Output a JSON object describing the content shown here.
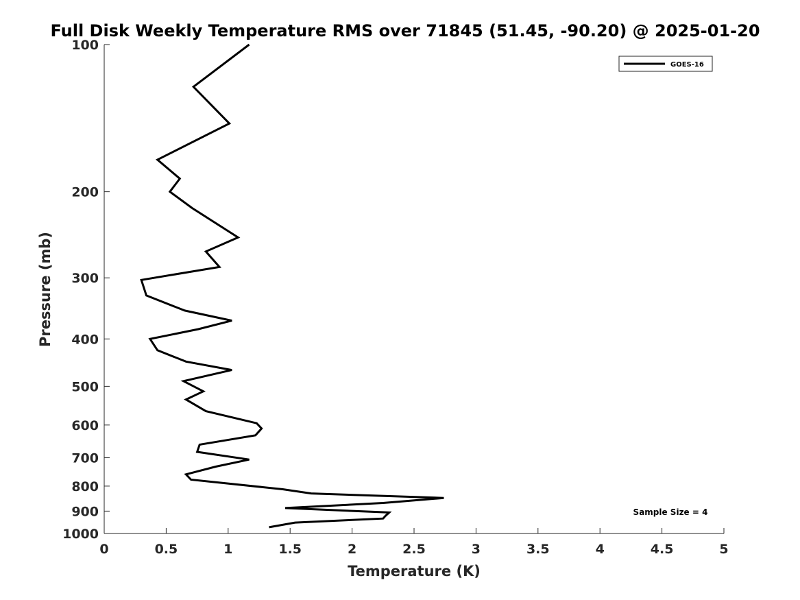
{
  "chart_data": {
    "type": "line",
    "title": "Full Disk Weekly Temperature RMS over 71845 (51.45, -90.20) @ 2025-01-20",
    "xlabel": "Temperature (K)",
    "ylabel": "Pressure (mb)",
    "xlim": [
      0,
      5
    ],
    "ylim": [
      100,
      1000
    ],
    "y_scale": "log",
    "y_reversed": true,
    "x_ticks": [
      "0",
      "0.5",
      "1",
      "1.5",
      "2",
      "2.5",
      "3",
      "3.5",
      "4",
      "4.5",
      "5"
    ],
    "y_ticks": [
      "100",
      "200",
      "300",
      "400",
      "500",
      "600",
      "700",
      "800",
      "900",
      "1000"
    ],
    "grid": false,
    "legend_position": "top-right",
    "annotation": "Sample Size = 4",
    "series": [
      {
        "name": "GOES-16",
        "color": "#000000",
        "x": [
          1.17,
          0.72,
          1.01,
          0.43,
          0.61,
          0.53,
          0.71,
          1.08,
          0.82,
          0.93,
          0.3,
          0.34,
          0.65,
          1.03,
          0.76,
          0.37,
          0.43,
          0.66,
          1.03,
          0.64,
          0.8,
          0.66,
          0.82,
          1.23,
          1.27,
          1.22,
          0.77,
          0.75,
          1.17,
          0.9,
          0.66,
          0.7,
          1.44,
          1.67,
          2.74,
          2.25,
          1.46,
          2.3,
          2.27,
          2.25,
          1.54,
          1.33
        ],
        "y": [
          100,
          122,
          145,
          172,
          188,
          200,
          216,
          248,
          265,
          285,
          303,
          326,
          350,
          367,
          382,
          400,
          422,
          445,
          463,
          488,
          512,
          532,
          562,
          595,
          610,
          630,
          658,
          681,
          706,
          730,
          757,
          776,
          812,
          828,
          846,
          866,
          887,
          906,
          920,
          932,
          950,
          971
        ]
      }
    ]
  }
}
